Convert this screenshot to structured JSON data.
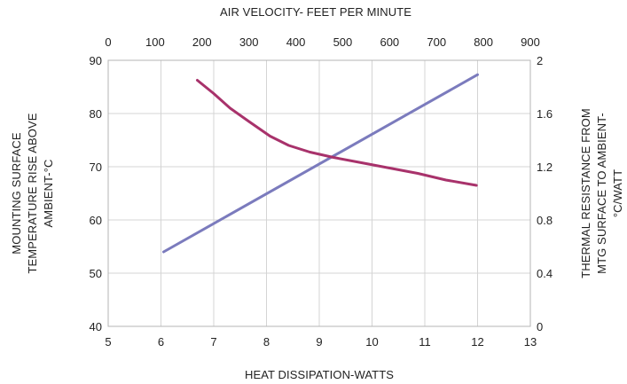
{
  "chart_data": {
    "type": "line",
    "title": "",
    "top_axis": {
      "label": "AIR VELOCITY- FEET PER MINUTE",
      "range": [
        0,
        900
      ],
      "ticks": [
        0,
        100,
        200,
        300,
        400,
        500,
        600,
        700,
        800,
        900
      ]
    },
    "bottom_axis": {
      "label": "HEAT DISSIPATION-WATTS",
      "range": [
        5,
        13
      ],
      "ticks": [
        5,
        6,
        7,
        8,
        9,
        10,
        11,
        12,
        13
      ]
    },
    "left_axis": {
      "label_lines": [
        "MOUNTING SURFACE",
        "TEMPERATURE RISE ABOVE",
        "AMBIENT-°C"
      ],
      "range": [
        40,
        90
      ],
      "ticks": [
        40,
        50,
        60,
        70,
        80,
        90
      ]
    },
    "right_axis": {
      "label_lines": [
        "THERMAL RESISTANCE FROM",
        "MTG SURFACE TO AMBIENT-",
        "°C/WATT"
      ],
      "range": [
        0,
        2
      ],
      "ticks": [
        "0",
        "0.4",
        "0.8",
        "1.2",
        "1.6",
        "2"
      ]
    },
    "grid": true,
    "series": [
      {
        "color": "#7b7bbd",
        "x_axis": "bottom",
        "y_axis": "left",
        "points": [
          [
            6.05,
            54.0
          ],
          [
            12.0,
            87.3
          ]
        ]
      },
      {
        "color": "#a8326b",
        "x_axis": "top",
        "y_axis": "right",
        "points": [
          [
            190,
            1.85
          ],
          [
            225,
            1.75
          ],
          [
            260,
            1.64
          ],
          [
            300,
            1.54
          ],
          [
            345,
            1.43
          ],
          [
            385,
            1.36
          ],
          [
            430,
            1.31
          ],
          [
            480,
            1.27
          ],
          [
            540,
            1.23
          ],
          [
            600,
            1.19
          ],
          [
            660,
            1.15
          ],
          [
            720,
            1.1
          ],
          [
            785,
            1.06
          ]
        ]
      }
    ]
  }
}
